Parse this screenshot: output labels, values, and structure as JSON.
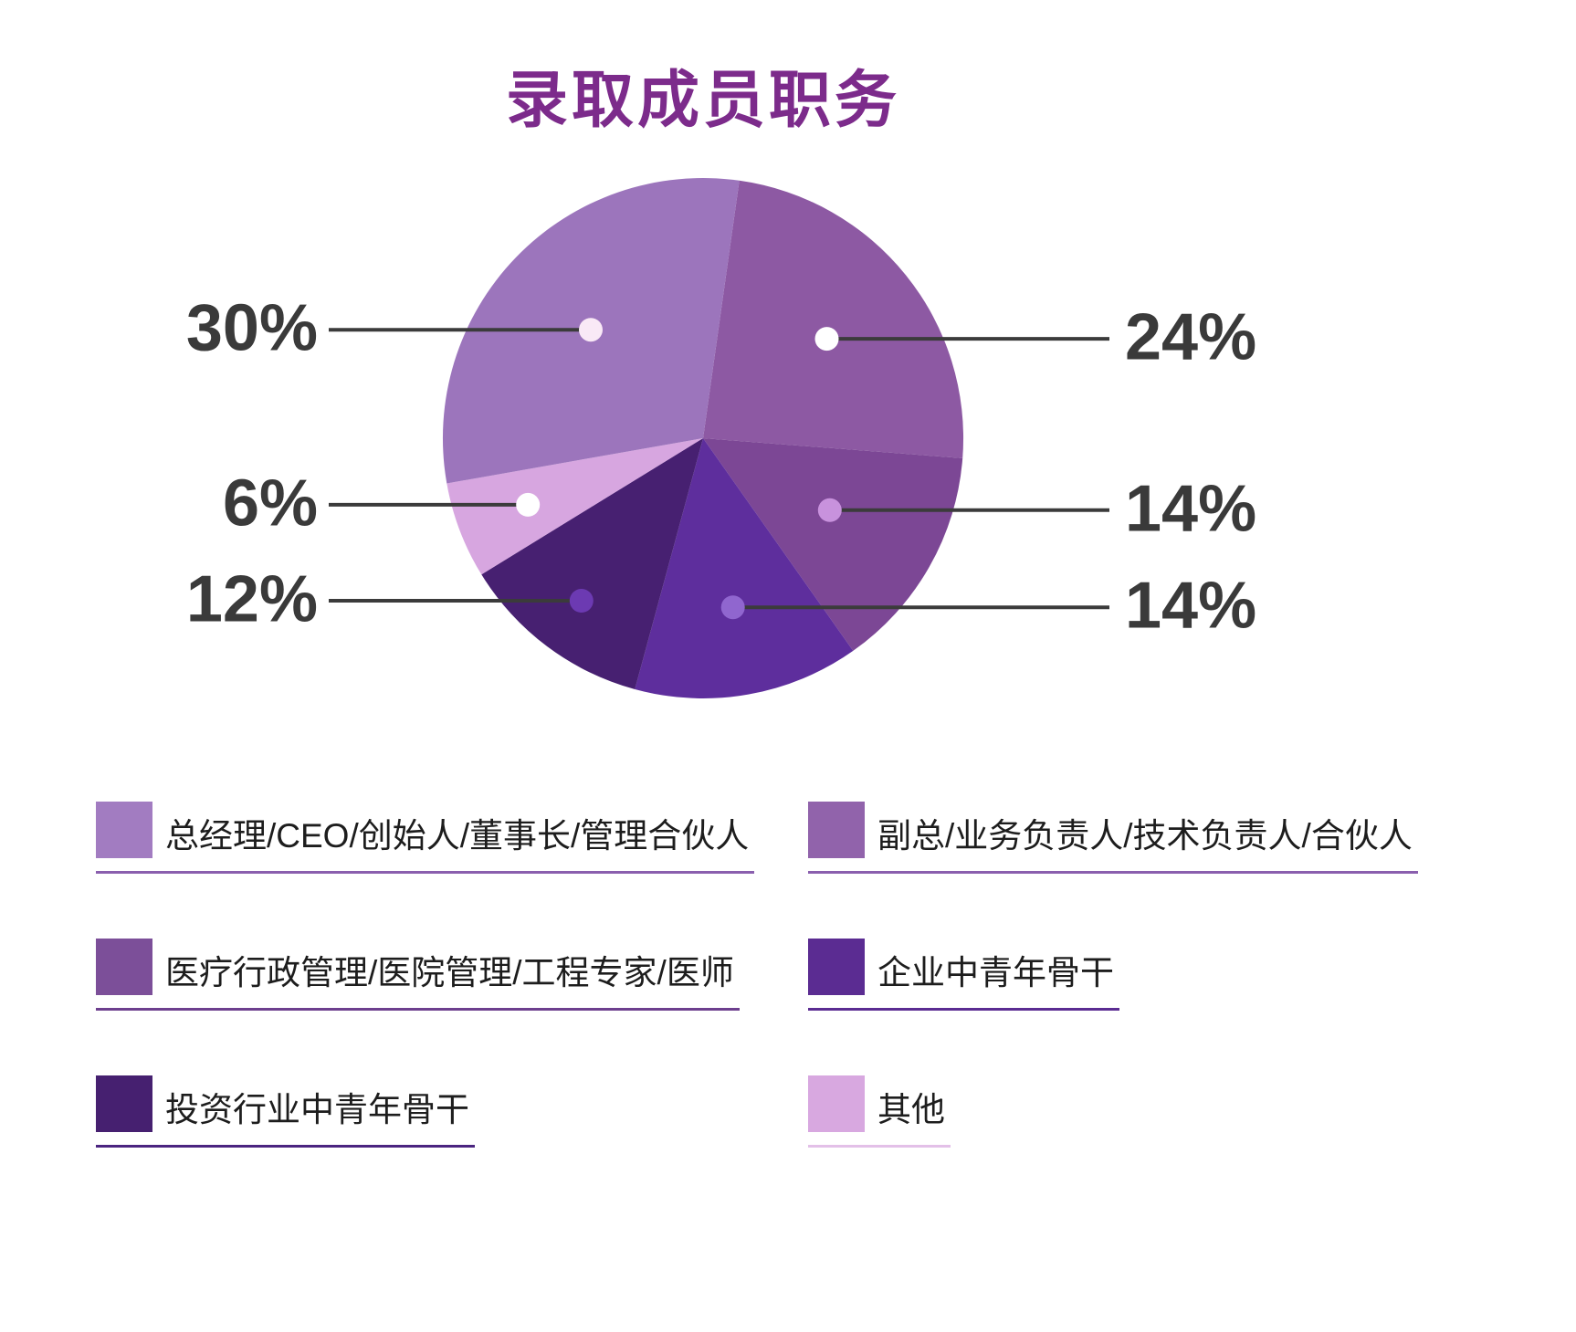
{
  "title": "录取成员职务",
  "chart_data": {
    "type": "pie",
    "title": "录取成员职务",
    "start_angle_deg": 8,
    "direction": "clockwise",
    "legend_position": "bottom",
    "slices": [
      {
        "label": "副总/业务负责人/技术负责人/合伙人",
        "value": 24,
        "pct_label": "24%",
        "color": "#8d59a3",
        "dot_color": "#ffffff",
        "callout_side": "right"
      },
      {
        "label": "医疗行政管理/医院管理/工程专家/医师",
        "value": 14,
        "pct_label": "14%",
        "color": "#7c4795",
        "dot_color": "#c892dd",
        "callout_side": "right"
      },
      {
        "label": "企业中青年骨干",
        "value": 14,
        "pct_label": "14%",
        "color": "#5e2e9d",
        "dot_color": "#9066cf",
        "callout_side": "right"
      },
      {
        "label": "投资行业中青年骨干",
        "value": 12,
        "pct_label": "12%",
        "color": "#472071",
        "dot_color": "#6c3ab2",
        "callout_side": "left"
      },
      {
        "label": "其他",
        "value": 6,
        "pct_label": "6%",
        "color": "#d7a6e0",
        "dot_color": "#ffffff",
        "callout_side": "left"
      },
      {
        "label": "总经理/CEO/创始人/董事长/管理合伙人",
        "value": 30,
        "pct_label": "30%",
        "color": "#9c75bc",
        "dot_color": "#f9e9f6",
        "callout_side": "left"
      }
    ]
  },
  "legend": {
    "items": [
      {
        "label": "总经理/CEO/创始人/董事长/管理合伙人",
        "color": "#a27cc1",
        "underline_color": "#8a5fae"
      },
      {
        "label": "副总/业务负责人/技术负责人/合伙人",
        "color": "#9163ab",
        "underline_color": "#8a5fae"
      },
      {
        "label": "医疗行政管理/医院管理/工程专家/医师",
        "color": "#7c4f99",
        "underline_color": "#6d3f8e"
      },
      {
        "label": "企业中青年骨干",
        "color": "#5b2c92",
        "underline_color": "#5b2c92"
      },
      {
        "label": "投资行业中青年骨干",
        "color": "#462070",
        "underline_color": "#4b2580"
      },
      {
        "label": "其他",
        "color": "#d8a8e0",
        "underline_color": "#e3c0e8"
      }
    ]
  },
  "colors": {
    "title": "#7c2b8b",
    "percent_label_text": "#3a3a3a",
    "leader_line": "#3b3b3b",
    "legend_text": "#1d1d1d",
    "background": "#ffffff"
  }
}
